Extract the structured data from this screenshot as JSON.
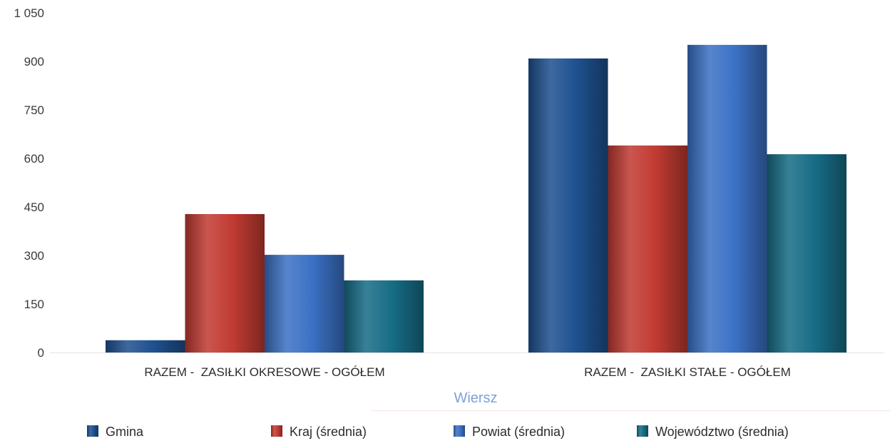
{
  "chart_data": {
    "type": "bar",
    "categories": [
      "RAZEM -  ZASIŁKI OKRESOWE - OGÓŁEM",
      "RAZEM -  ZASIŁKI STAŁE - OGÓŁEM"
    ],
    "series": [
      {
        "name": "Gmina",
        "values": [
          38,
          909
        ],
        "color": "#1e5190"
      },
      {
        "name": "Kraj (średnia)",
        "values": [
          428,
          640
        ],
        "color": "#c13b32"
      },
      {
        "name": "Powiat (średnia)",
        "values": [
          302,
          951
        ],
        "color": "#3b71c5"
      },
      {
        "name": "Województwo (średnia)",
        "values": [
          223,
          613
        ],
        "color": "#176d86"
      }
    ],
    "xlabel": "Wiersz",
    "ylim": [
      0,
      1050
    ],
    "yticks": [
      0,
      150,
      300,
      450,
      600,
      750,
      900,
      1050
    ],
    "ytick_labels": [
      "0",
      "150",
      "300",
      "450",
      "600",
      "750",
      "900",
      "1 050"
    ],
    "grid": false,
    "legend": "bottom"
  }
}
